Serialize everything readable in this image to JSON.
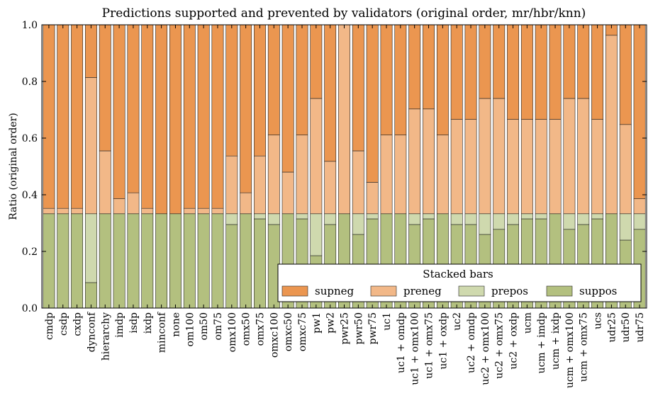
{
  "chart_data": {
    "type": "bar",
    "stacked": true,
    "title": "Predictions supported and prevented by validators (original order, mr/hbr/knn)",
    "xlabel": "",
    "ylabel": "Ratio (original order)",
    "ylim": [
      0,
      1
    ],
    "yticks": [
      "0.0",
      "0.2",
      "0.4",
      "0.6",
      "0.8",
      "1.0"
    ],
    "grid": false,
    "legend": {
      "title": "Stacked bars",
      "placement": "lower-right"
    },
    "categories": [
      "cmdp",
      "csdp",
      "cxdp",
      "dynconf",
      "hierarchy",
      "imdp",
      "isdp",
      "ixdp",
      "minconf",
      "none",
      "om100",
      "om50",
      "om75",
      "omx100",
      "omx50",
      "omx75",
      "omxc100",
      "omxc50",
      "omxc75",
      "pw1",
      "pw2",
      "pwr25",
      "pwr50",
      "pwr75",
      "uc1",
      "uc1 + omdp",
      "uc1 + omx100",
      "uc1 + omx75",
      "uc1 + oxdp",
      "uc2",
      "uc2 + omdp",
      "uc2 + omx100",
      "uc2 + omx75",
      "uc2 + oxdp",
      "ucm",
      "ucm + imdp",
      "ucm + ixdp",
      "ucm + omx100",
      "ucm + omx75",
      "ucs",
      "udr25",
      "udr50",
      "udr75"
    ],
    "series": [
      {
        "name": "suppos",
        "color": "#b3c07f",
        "values": [
          0.333,
          0.333,
          0.333,
          0.09,
          0.333,
          0.333,
          0.333,
          0.333,
          0.333,
          0.333,
          0.333,
          0.333,
          0.333,
          0.295,
          0.333,
          0.315,
          0.295,
          0.333,
          0.315,
          0.185,
          0.295,
          0.333,
          0.26,
          0.315,
          0.333,
          0.333,
          0.295,
          0.315,
          0.333,
          0.295,
          0.295,
          0.26,
          0.278,
          0.295,
          0.315,
          0.315,
          0.333,
          0.278,
          0.295,
          0.315,
          0.333,
          0.24,
          0.278
        ]
      },
      {
        "name": "prepos",
        "color": "#cfd9ae",
        "values": [
          0,
          0,
          0,
          0.243,
          0,
          0,
          0,
          0,
          0,
          0,
          0,
          0,
          0,
          0.038,
          0,
          0.018,
          0.038,
          0,
          0.018,
          0.148,
          0.038,
          0,
          0.073,
          0.018,
          0,
          0,
          0.038,
          0.018,
          0,
          0.038,
          0.038,
          0.073,
          0.055,
          0.038,
          0.018,
          0.018,
          0,
          0.055,
          0.038,
          0.018,
          0,
          0.093,
          0.055
        ]
      },
      {
        "name": "preneg",
        "color": "#f2b888",
        "values": [
          0.019,
          0.019,
          0.019,
          0.481,
          0.222,
          0.053,
          0.074,
          0.019,
          0,
          0,
          0.019,
          0.019,
          0.019,
          0.204,
          0.074,
          0.204,
          0.278,
          0.147,
          0.278,
          0.407,
          0.185,
          0.667,
          0.222,
          0.111,
          0.278,
          0.278,
          0.37,
          0.37,
          0.278,
          0.333,
          0.333,
          0.407,
          0.407,
          0.333,
          0.333,
          0.333,
          0.333,
          0.407,
          0.407,
          0.333,
          0.63,
          0.315,
          0.053
        ]
      },
      {
        "name": "supneg",
        "color": "#eb9650",
        "values": [
          0.648,
          0.648,
          0.648,
          0.186,
          0.445,
          0.614,
          0.593,
          0.648,
          0.667,
          0.667,
          0.648,
          0.648,
          0.648,
          0.463,
          0.593,
          0.463,
          0.389,
          0.52,
          0.389,
          0.26,
          0.482,
          0,
          0.445,
          0.556,
          0.389,
          0.389,
          0.297,
          0.297,
          0.389,
          0.334,
          0.334,
          0.26,
          0.26,
          0.334,
          0.334,
          0.334,
          0.334,
          0.26,
          0.26,
          0.334,
          0.037,
          0.352,
          0.614
        ]
      }
    ]
  }
}
